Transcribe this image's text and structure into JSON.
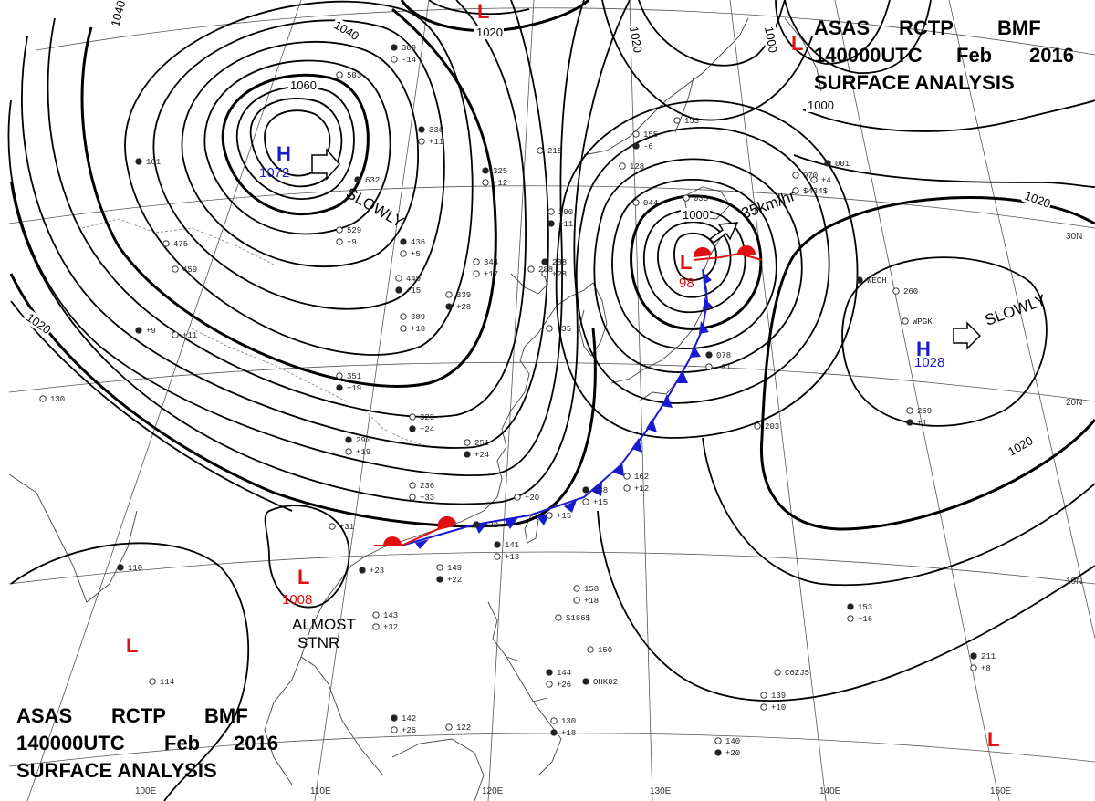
{
  "header": {
    "line1": [
      "ASAS",
      "RCTP",
      "BMF"
    ],
    "line2": [
      "140000UTC",
      "Feb",
      "2016"
    ],
    "line3": "SURFACE ANALYSIS"
  },
  "pressure_centers": [
    {
      "id": "h-siberia",
      "type": "H",
      "value": "1072",
      "color": "#1a1ad0"
    },
    {
      "id": "h-pacific",
      "type": "H",
      "value": "1028",
      "color": "#1a1ad0"
    },
    {
      "id": "l-japan",
      "type": "L",
      "value": "98",
      "color": "#e01010"
    },
    {
      "id": "l-scs",
      "type": "L",
      "value": "1008",
      "color": "#e01010"
    },
    {
      "id": "l-top",
      "type": "L",
      "value": "",
      "color": "#e01010"
    },
    {
      "id": "l-ne",
      "type": "L",
      "value": "",
      "color": "#e01010"
    },
    {
      "id": "l-west",
      "type": "L",
      "value": "",
      "color": "#e01010"
    },
    {
      "id": "l-se",
      "type": "L",
      "value": "",
      "color": "#e01010"
    }
  ],
  "motions": {
    "siberia": "SLOWLY",
    "pacific": "SLOWLY",
    "japan_low": "35km/hr",
    "scs_low": [
      "ALMOST",
      "STNR"
    ]
  },
  "isobar_labels": {
    "l1040a": "1040",
    "l1040b": "1040",
    "l1060": "1060",
    "l1020top": "1020",
    "l1020b": "1020",
    "l1000": "1000",
    "l1000b": "1000",
    "l1000c": "1000",
    "l1020west": "1020",
    "l1020east": "1020",
    "l1020se": "1020"
  },
  "grid_labels": {
    "lat": [
      "30N",
      "20N",
      "10N"
    ],
    "lon": [
      "100E",
      "110E",
      "120E",
      "130E",
      "140E",
      "150E"
    ]
  },
  "stations": [
    "309",
    "-14",
    "503",
    "336",
    "+11",
    "215",
    "325",
    "+12",
    "155",
    "-6",
    "153",
    "128",
    "161",
    "288",
    "475",
    "632",
    "529",
    "+9",
    "436",
    "+5",
    "449",
    "+15",
    "344",
    "+17",
    "288",
    "+28",
    "200",
    "+11",
    "459",
    "339",
    "+28",
    "389",
    "+18",
    "+9",
    "+11",
    "351",
    "+19",
    "130",
    "323",
    "+24",
    "203",
    "+35",
    "290",
    "+19",
    "251",
    "+24",
    "236",
    "+33",
    "141",
    "+13",
    "149",
    "+22",
    "162",
    "+12",
    "138",
    "+15",
    "+20",
    "+22",
    "+15",
    "+31",
    "+23",
    "143",
    "+32",
    "110",
    "158",
    "+18",
    "153",
    "+16",
    "114",
    "142",
    "+26",
    "150",
    "144",
    "+26",
    "130",
    "+18",
    "122",
    "140",
    "+20",
    "139",
    "+10",
    "211",
    "+8",
    "259",
    "+1",
    "260",
    "970",
    "001",
    "033",
    "044",
    "078",
    "-21",
    "+4",
    "OHK02",
    "C6ZJ5",
    "WPGK",
    "WECH",
    "$186$",
    "$434$"
  ]
}
